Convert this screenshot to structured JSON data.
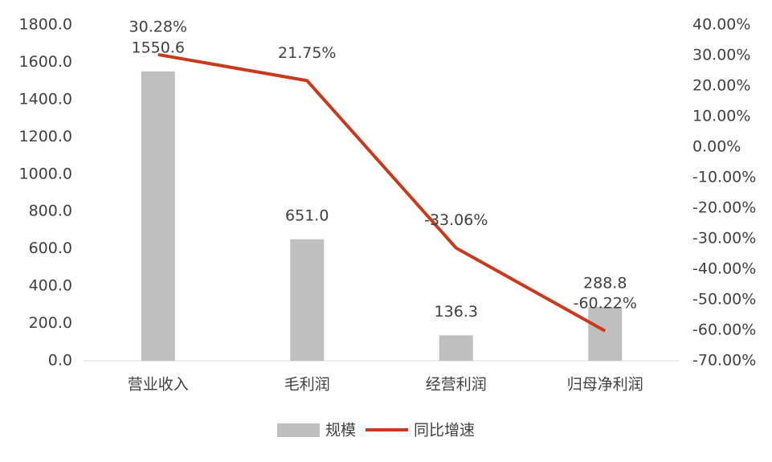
{
  "chart_data": {
    "type": "bar-line",
    "categories": [
      "营业收入",
      "毛利润",
      "经营利润",
      "归母净利润"
    ],
    "series": [
      {
        "name": "规模",
        "type": "bar",
        "color": "#bfbfbf",
        "values": [
          1550.6,
          651.0,
          136.3,
          288.8
        ],
        "value_labels": [
          "1550.6",
          "651.0",
          "136.3",
          "288.8"
        ]
      },
      {
        "name": "同比增速",
        "type": "line",
        "axis": "y2",
        "color": "#c9391b",
        "values": [
          30.28,
          21.75,
          -33.06,
          -60.22
        ],
        "value_labels": [
          "30.28%",
          "21.75%",
          "-33.06%",
          "-60.22%"
        ]
      }
    ],
    "ylim": [
      0,
      1800
    ],
    "yticks": [
      {
        "value": 0,
        "label": "0.0"
      },
      {
        "value": 200,
        "label": "200.0"
      },
      {
        "value": 400,
        "label": "400.0"
      },
      {
        "value": 600,
        "label": "600.0"
      },
      {
        "value": 800,
        "label": "800.0"
      },
      {
        "value": 1000,
        "label": "1000.0"
      },
      {
        "value": 1200,
        "label": "1200.0"
      },
      {
        "value": 1400,
        "label": "1400.0"
      },
      {
        "value": 1600,
        "label": "1600.0"
      },
      {
        "value": 1800,
        "label": "1800.0"
      }
    ],
    "y2lim": [
      -70,
      40
    ],
    "y2ticks": [
      {
        "value": -70,
        "label": "-70.00%"
      },
      {
        "value": -60,
        "label": "-60.00%"
      },
      {
        "value": -50,
        "label": "-50.00%"
      },
      {
        "value": -40,
        "label": "-40.00%"
      },
      {
        "value": -30,
        "label": "-30.00%"
      },
      {
        "value": -20,
        "label": "-20.00%"
      },
      {
        "value": -10,
        "label": "-10.00%"
      },
      {
        "value": 0,
        "label": "0.00%"
      },
      {
        "value": 10,
        "label": "10.00%"
      },
      {
        "value": 20,
        "label": "20.00%"
      },
      {
        "value": 30,
        "label": "30.00%"
      },
      {
        "value": 40,
        "label": "40.00%"
      }
    ],
    "grid": false,
    "legend": "bottom"
  }
}
